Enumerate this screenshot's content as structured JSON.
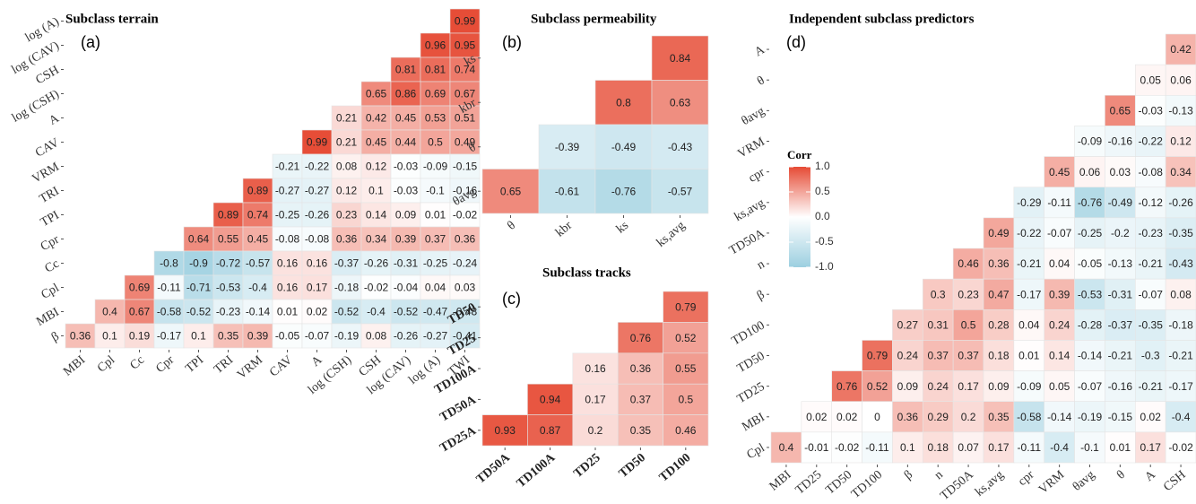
{
  "chart_data": [
    {
      "type": "heatmap",
      "title": "Subclass terrain",
      "panel_label": "(a)",
      "x": [
        "MBI",
        "Cpl",
        "Cc",
        "Cpr",
        "TPI",
        "TRI",
        "VRM",
        "CAV",
        "A",
        "log (CSH)",
        "CSH",
        "log (CAV)",
        "log (A)",
        "TWI"
      ],
      "y": [
        "log (A)",
        "log (CAV)",
        "CSH",
        "log (CSH)",
        "A",
        "CAV",
        "VRM",
        "TRI",
        "TPI",
        "Cpr",
        "Cc",
        "Cpl",
        "MBI",
        "β"
      ],
      "values": [
        [
          null,
          null,
          null,
          null,
          null,
          null,
          null,
          null,
          null,
          null,
          null,
          null,
          null,
          0.99
        ],
        [
          null,
          null,
          null,
          null,
          null,
          null,
          null,
          null,
          null,
          null,
          null,
          null,
          0.96,
          0.95
        ],
        [
          null,
          null,
          null,
          null,
          null,
          null,
          null,
          null,
          null,
          null,
          null,
          0.81,
          0.81,
          0.74
        ],
        [
          null,
          null,
          null,
          null,
          null,
          null,
          null,
          null,
          null,
          null,
          0.65,
          0.86,
          0.69,
          0.67
        ],
        [
          null,
          null,
          null,
          null,
          null,
          null,
          null,
          null,
          null,
          0.21,
          0.42,
          0.45,
          0.53,
          0.51
        ],
        [
          null,
          null,
          null,
          null,
          null,
          null,
          null,
          null,
          0.99,
          0.21,
          0.45,
          0.44,
          0.5,
          0.49
        ],
        [
          null,
          null,
          null,
          null,
          null,
          null,
          null,
          -0.21,
          -0.22,
          0.08,
          0.12,
          -0.03,
          -0.09,
          -0.15
        ],
        [
          null,
          null,
          null,
          null,
          null,
          null,
          0.89,
          -0.27,
          -0.27,
          0.12,
          0.1,
          -0.03,
          -0.1,
          -0.16
        ],
        [
          null,
          null,
          null,
          null,
          null,
          0.89,
          0.74,
          -0.25,
          -0.26,
          0.23,
          0.14,
          0.09,
          0.01,
          -0.02
        ],
        [
          null,
          null,
          null,
          null,
          0.64,
          0.55,
          0.45,
          -0.08,
          -0.08,
          0.36,
          0.34,
          0.39,
          0.37,
          0.36
        ],
        [
          null,
          null,
          null,
          -0.8,
          -0.9,
          -0.72,
          -0.57,
          0.16,
          0.16,
          -0.37,
          -0.26,
          -0.31,
          -0.25,
          -0.24
        ],
        [
          null,
          null,
          0.69,
          -0.11,
          -0.71,
          -0.53,
          -0.4,
          0.16,
          0.17,
          -0.18,
          -0.02,
          -0.04,
          0.04,
          0.03
        ],
        [
          null,
          0.4,
          0.67,
          -0.58,
          -0.52,
          -0.23,
          -0.14,
          0.01,
          0.02,
          -0.52,
          -0.4,
          -0.52,
          -0.47,
          -0.48
        ],
        [
          0.36,
          0.1,
          0.19,
          -0.17,
          0.1,
          0.35,
          0.39,
          -0.05,
          -0.07,
          -0.19,
          0.08,
          -0.26,
          -0.27,
          -0.41
        ]
      ]
    },
    {
      "type": "heatmap",
      "title": "Subclass permeability",
      "panel_label": "(b)",
      "x": [
        "θ",
        "kbr",
        "ks",
        "ks,avg"
      ],
      "y": [
        "ks",
        "kbr",
        "θ",
        "θavg"
      ],
      "values": [
        [
          null,
          null,
          null,
          0.84
        ],
        [
          null,
          null,
          0.8,
          0.63
        ],
        [
          null,
          -0.39,
          -0.49,
          -0.43
        ],
        [
          0.65,
          -0.61,
          -0.76,
          -0.57
        ]
      ]
    },
    {
      "type": "heatmap",
      "title": "Subclass tracks",
      "panel_label": "(c)",
      "x": [
        "TD50A",
        "TD100A",
        "TD25",
        "TD50",
        "TD100"
      ],
      "y": [
        "TD50",
        "TD25",
        "TD100A",
        "TD50A",
        "TD25A"
      ],
      "values": [
        [
          null,
          null,
          null,
          null,
          0.79
        ],
        [
          null,
          null,
          null,
          0.76,
          0.52
        ],
        [
          null,
          null,
          0.16,
          0.36,
          0.55
        ],
        [
          null,
          0.94,
          0.17,
          0.37,
          0.5
        ],
        [
          0.93,
          0.87,
          0.2,
          0.35,
          0.46
        ]
      ]
    },
    {
      "type": "heatmap",
      "title": "Independent subclass predictors",
      "panel_label": "(d)",
      "x": [
        "MBI",
        "TD25",
        "TD50",
        "TD100",
        "β",
        "n",
        "TD50A",
        "ks,avg",
        "cpr",
        "VRM",
        "θavg",
        "θ",
        "A",
        "CSH"
      ],
      "y": [
        "A",
        "θ",
        "θavg",
        "VRM",
        "cpr",
        "ks,avg",
        "TD50A",
        "n",
        "β",
        "TD100",
        "TD50",
        "TD25",
        "MBI",
        "Cpl"
      ],
      "values": [
        [
          null,
          null,
          null,
          null,
          null,
          null,
          null,
          null,
          null,
          null,
          null,
          null,
          null,
          0.42
        ],
        [
          null,
          null,
          null,
          null,
          null,
          null,
          null,
          null,
          null,
          null,
          null,
          null,
          0.05,
          0.06
        ],
        [
          null,
          null,
          null,
          null,
          null,
          null,
          null,
          null,
          null,
          null,
          null,
          0.65,
          -0.03,
          -0.13
        ],
        [
          null,
          null,
          null,
          null,
          null,
          null,
          null,
          null,
          null,
          null,
          -0.09,
          -0.16,
          -0.22,
          0.12
        ],
        [
          null,
          null,
          null,
          null,
          null,
          null,
          null,
          null,
          null,
          0.45,
          0.06,
          0.03,
          -0.08,
          0.34
        ],
        [
          null,
          null,
          null,
          null,
          null,
          null,
          null,
          null,
          -0.29,
          -0.11,
          -0.76,
          -0.49,
          -0.12,
          -0.26
        ],
        [
          null,
          null,
          null,
          null,
          null,
          null,
          null,
          0.49,
          -0.22,
          -0.07,
          -0.25,
          -0.2,
          -0.23,
          -0.35
        ],
        [
          null,
          null,
          null,
          null,
          null,
          null,
          0.46,
          0.36,
          -0.21,
          0.04,
          -0.05,
          -0.13,
          -0.21,
          -0.43
        ],
        [
          null,
          null,
          null,
          null,
          null,
          0.3,
          0.23,
          0.47,
          -0.17,
          0.39,
          -0.53,
          -0.31,
          -0.07,
          0.08
        ],
        [
          null,
          null,
          null,
          null,
          0.27,
          0.31,
          0.5,
          0.28,
          0.04,
          0.24,
          -0.28,
          -0.37,
          -0.35,
          -0.18
        ],
        [
          null,
          null,
          null,
          0.79,
          0.24,
          0.37,
          0.37,
          0.18,
          0.01,
          0.14,
          -0.14,
          -0.21,
          -0.3,
          -0.21
        ],
        [
          null,
          null,
          0.76,
          0.52,
          0.09,
          0.24,
          0.17,
          0.09,
          -0.09,
          0.05,
          -0.07,
          -0.16,
          -0.21,
          -0.17
        ],
        [
          null,
          0.02,
          0.02,
          0,
          0.36,
          0.29,
          0.2,
          0.35,
          -0.58,
          -0.14,
          -0.19,
          -0.15,
          0.02,
          -0.4
        ],
        [
          0.4,
          -0.01,
          -0.02,
          -0.11,
          0.1,
          0.18,
          0.07,
          0.17,
          -0.11,
          -0.4,
          -0.1,
          0.01,
          0.17,
          -0.02
        ]
      ]
    }
  ],
  "colorbar": {
    "title": "Corr",
    "lim": [
      -1,
      1
    ],
    "colors": [
      "#9ccfe0",
      "#ffffff",
      "#e64b35"
    ],
    "ticks": [
      {
        "value": 1,
        "label": "1.0"
      },
      0.5,
      {
        "value": 0,
        "label": "0.0"
      },
      -0.5,
      {
        "value": -1,
        "label": "-1.0"
      }
    ]
  }
}
